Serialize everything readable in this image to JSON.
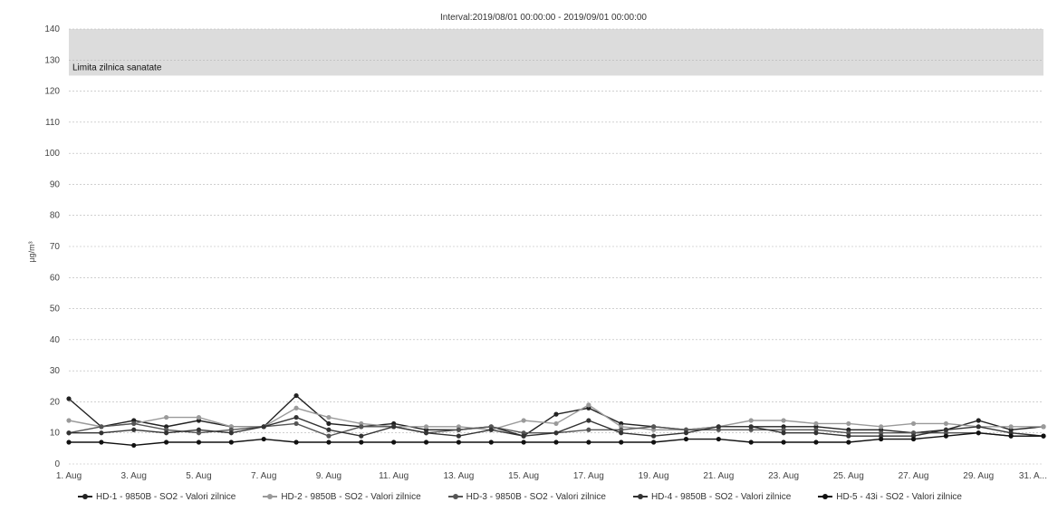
{
  "chart_data": {
    "type": "line",
    "title": "Interval:2019/08/01 00:00:00 - 2019/09/01 00:00:00",
    "ylabel": "µg/m³",
    "xlabel": "",
    "ylim": [
      0,
      140
    ],
    "yticks": [
      0,
      10,
      20,
      30,
      40,
      50,
      60,
      70,
      80,
      90,
      100,
      110,
      120,
      130,
      140
    ],
    "x_tick_labels": [
      "1. Aug",
      "3. Aug",
      "5. Aug",
      "7. Aug",
      "9. Aug",
      "11. Aug",
      "13. Aug",
      "15. Aug",
      "17. Aug",
      "19. Aug",
      "21. Aug",
      "23. Aug",
      "25. Aug",
      "27. Aug",
      "29. Aug",
      "31. A..."
    ],
    "x": [
      "1. Aug",
      "2. Aug",
      "3. Aug",
      "4. Aug",
      "5. Aug",
      "6. Aug",
      "7. Aug",
      "8. Aug",
      "9. Aug",
      "10. Aug",
      "11. Aug",
      "12. Aug",
      "13. Aug",
      "14. Aug",
      "15. Aug",
      "16. Aug",
      "17. Aug",
      "18. Aug",
      "19. Aug",
      "20. Aug",
      "21. Aug",
      "22. Aug",
      "23. Aug",
      "24. Aug",
      "25. Aug",
      "26. Aug",
      "27. Aug",
      "28. Aug",
      "29. Aug",
      "30. Aug",
      "31. Aug"
    ],
    "plot_band": {
      "from": 125,
      "to": 140,
      "label": "Limita zilnica sanatate",
      "color": "#dcdcdc"
    },
    "grid": true,
    "legend_placement": "bottom",
    "series": [
      {
        "name": "HD-1 - 9850B - SO2 - Valori zilnice",
        "color": "#222222",
        "values": [
          21,
          12,
          14,
          12,
          14,
          12,
          12,
          22,
          13,
          12,
          13,
          11,
          11,
          12,
          9,
          16,
          18,
          13,
          12,
          11,
          12,
          12,
          12,
          12,
          11,
          11,
          10,
          11,
          14,
          11,
          12
        ]
      },
      {
        "name": "HD-2 - 9850B - SO2 - Valori zilnice",
        "color": "#9a9a9a",
        "values": [
          14,
          12,
          13,
          15,
          15,
          12,
          12,
          18,
          15,
          13,
          12,
          12,
          12,
          11,
          14,
          13,
          19,
          12,
          11,
          11,
          12,
          14,
          14,
          13,
          13,
          12,
          13,
          13,
          12,
          12,
          12
        ]
      },
      {
        "name": "HD-3 - 9850B - SO2 - Valori zilnice",
        "color": "#555555",
        "values": [
          10,
          12,
          13,
          11,
          10,
          11,
          12,
          13,
          9,
          12,
          12,
          10,
          11,
          12,
          10,
          10,
          11,
          11,
          12,
          11,
          11,
          11,
          11,
          11,
          10,
          10,
          10,
          10,
          10,
          9,
          9
        ]
      },
      {
        "name": "HD-4 - 9850B - SO2 - Valori zilnice",
        "color": "#333333",
        "values": [
          10,
          10,
          11,
          10,
          11,
          10,
          12,
          15,
          11,
          9,
          12,
          10,
          9,
          11,
          9,
          10,
          14,
          10,
          9,
          10,
          12,
          12,
          10,
          10,
          9,
          9,
          9,
          11,
          12,
          10,
          9
        ]
      },
      {
        "name": "HD-5 - 43i - SO2 - Valori zilnice",
        "color": "#111111",
        "values": [
          7,
          7,
          6,
          7,
          7,
          7,
          8,
          7,
          7,
          7,
          7,
          7,
          7,
          7,
          7,
          7,
          7,
          7,
          7,
          8,
          8,
          7,
          7,
          7,
          7,
          8,
          8,
          9,
          10,
          9,
          9
        ]
      }
    ]
  }
}
